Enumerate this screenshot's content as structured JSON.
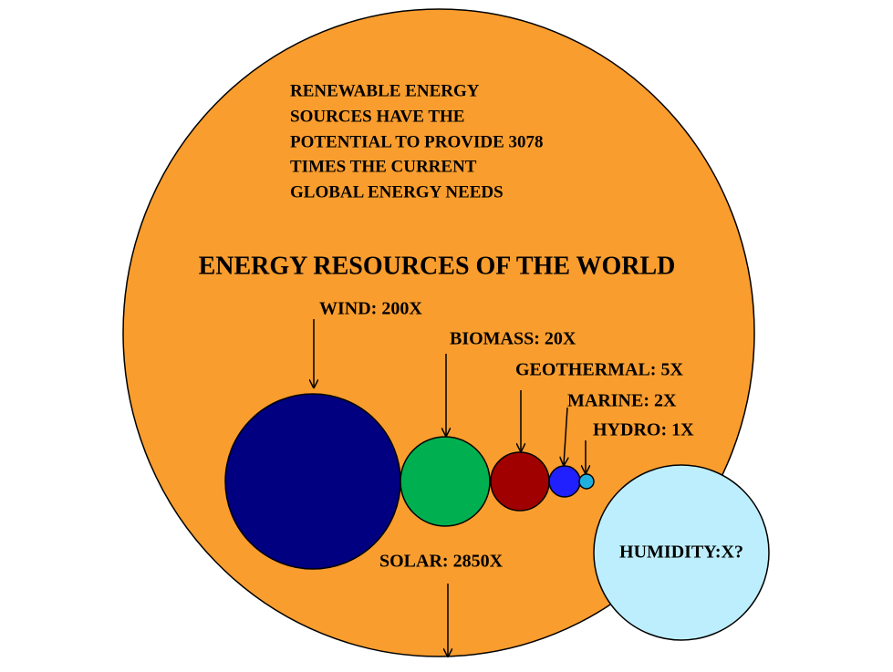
{
  "header": {
    "note": [
      "RENEWABLE ENERGY",
      "SOURCES HAVE THE",
      "POTENTIAL TO PROVIDE 3078",
      "TIMES THE CURRENT",
      "GLOBAL ENERGY NEEDS"
    ],
    "title": "ENERGY RESOURCES OF THE WORLD"
  },
  "nodes": [
    {
      "label": "WIND: 200X"
    },
    {
      "label": "BIOMASS: 20X"
    },
    {
      "label": "GEOTHERMAL: 5X"
    },
    {
      "label": "MARINE: 2X"
    },
    {
      "label": "HYDRO: 1X"
    },
    {
      "label": "SOLAR: 2850X"
    },
    {
      "label": "HUMIDITY:X?"
    }
  ]
}
